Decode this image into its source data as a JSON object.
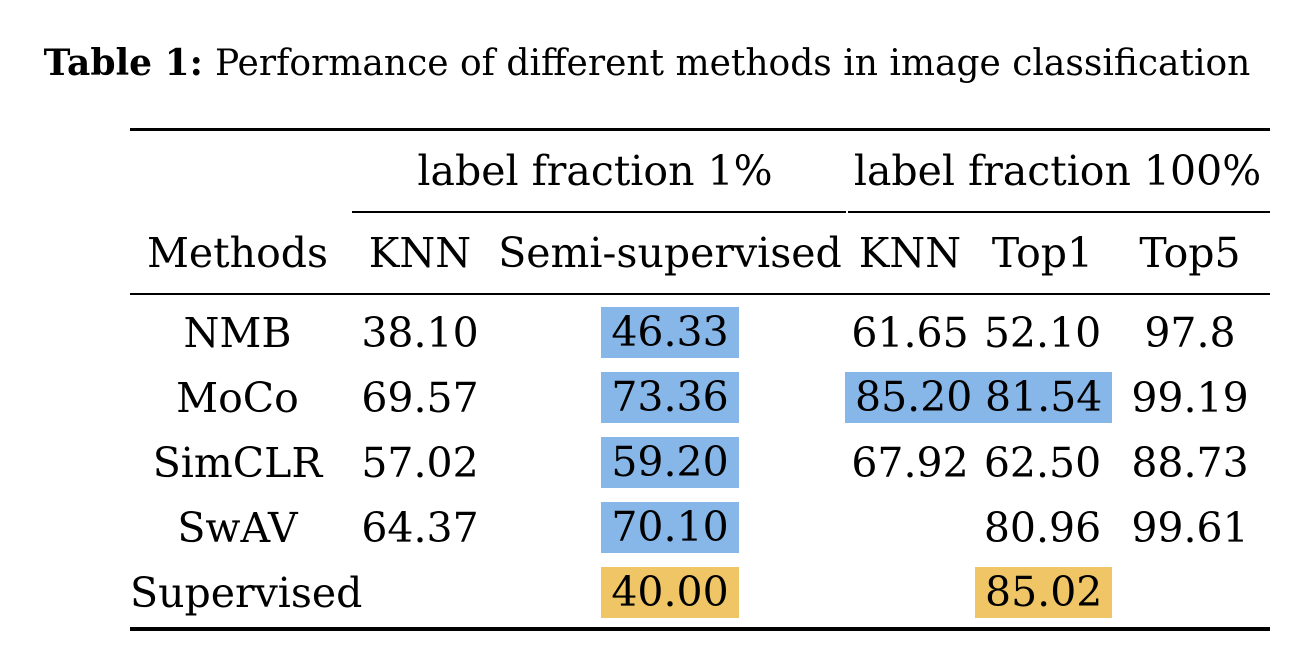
{
  "caption": {
    "label": "Table 1:",
    "text": "Performance of different methods in image classification"
  },
  "table": {
    "group_headers": [
      {
        "label": "label fraction 1%",
        "spans_columns": [
          "KNN",
          "Semi-supervised"
        ]
      },
      {
        "label": "label fraction 100%",
        "spans_columns": [
          "KNN",
          "Top1",
          "Top5"
        ]
      }
    ],
    "column_headers": [
      "Methods",
      "KNN",
      "Semi-supervised",
      "KNN",
      "Top1",
      "Top5"
    ],
    "rows": [
      {
        "method": "NMB",
        "cells": [
          {
            "v": "38.10"
          },
          {
            "v": "46.33",
            "hl": "blue"
          },
          {
            "v": "61.65"
          },
          {
            "v": "52.10"
          },
          {
            "v": "97.8"
          }
        ]
      },
      {
        "method": "MoCo",
        "cells": [
          {
            "v": "69.57"
          },
          {
            "v": "73.36",
            "hl": "blue"
          },
          {
            "v": "85.20",
            "hl": "blue"
          },
          {
            "v": "81.54",
            "hl": "blue"
          },
          {
            "v": "99.19"
          }
        ]
      },
      {
        "method": "SimCLR",
        "cells": [
          {
            "v": "57.02"
          },
          {
            "v": "59.20",
            "hl": "blue"
          },
          {
            "v": "67.92"
          },
          {
            "v": "62.50"
          },
          {
            "v": "88.73"
          }
        ]
      },
      {
        "method": "SwAV",
        "cells": [
          {
            "v": "64.37"
          },
          {
            "v": "70.10",
            "hl": "blue"
          },
          {
            "v": ""
          },
          {
            "v": "80.96"
          },
          {
            "v": "99.61"
          }
        ]
      },
      {
        "method": "Supervised",
        "cells": [
          {
            "v": ""
          },
          {
            "v": "40.00",
            "hl": "orange"
          },
          {
            "v": ""
          },
          {
            "v": "85.02",
            "hl": "orange"
          },
          {
            "v": ""
          }
        ]
      }
    ],
    "colors": {
      "highlight_blue": "#87B7E8",
      "highlight_orange": "#F0C566",
      "rule": "#000000",
      "text": "#000000",
      "background": "#FFFFFF"
    }
  }
}
